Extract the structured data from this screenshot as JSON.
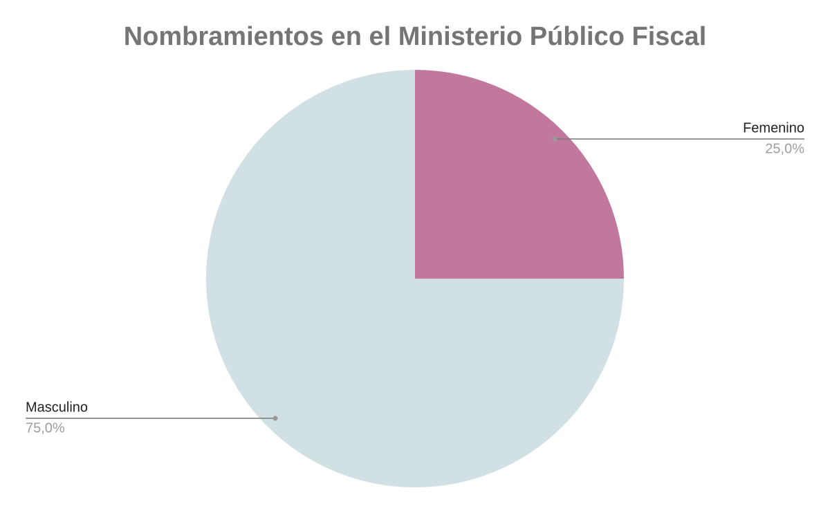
{
  "chart_data": {
    "type": "pie",
    "title": "Nombramientos en el Ministerio Público Fiscal",
    "categories": [
      "Femenino",
      "Masculino"
    ],
    "values": [
      25,
      75
    ],
    "value_labels": [
      "25,0%",
      "75,0%"
    ],
    "colors": [
      "#c1789c",
      "#d1e0e2"
    ]
  }
}
